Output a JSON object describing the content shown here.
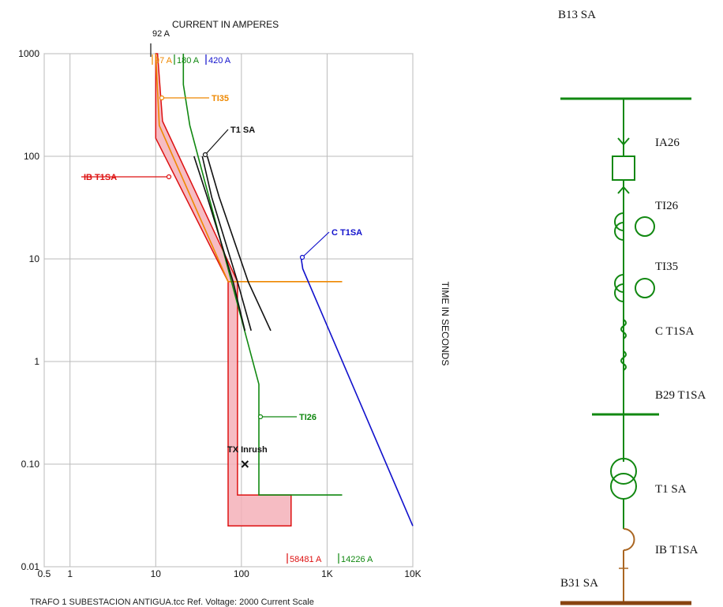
{
  "chart_data": {
    "type": "line",
    "title": "CURRENT IN AMPERES",
    "xlabel": "CURRENT IN AMPERES",
    "ylabel": "TIME IN SECONDS",
    "x_scale": "log",
    "y_scale": "log",
    "xlim": [
      0.5,
      10000
    ],
    "ylim": [
      0.01,
      1000
    ],
    "grid": true,
    "x_ticks": [
      {
        "value": 0.5,
        "label": "0.5"
      },
      {
        "value": 1,
        "label": "1"
      },
      {
        "value": 10,
        "label": "10"
      },
      {
        "value": 100,
        "label": "100"
      },
      {
        "value": 1000,
        "label": "1K"
      },
      {
        "value": 10000,
        "label": "10K"
      }
    ],
    "y_ticks": [
      {
        "value": 1000,
        "label": "1000"
      },
      {
        "value": 100,
        "label": "100"
      },
      {
        "value": 10,
        "label": "10"
      },
      {
        "value": 1,
        "label": "1"
      },
      {
        "value": 0.1,
        "label": "0.10"
      },
      {
        "value": 0.01,
        "label": "0.01"
      }
    ],
    "series": [
      {
        "name": "IB T1SA",
        "color": "#dd1111",
        "band": {
          "left": [
            [
              10,
              1000
            ],
            [
              10,
              150
            ],
            [
              70,
              6
            ],
            [
              70,
              0.025
            ],
            [
              380,
              0.025
            ],
            [
              380,
              0.05
            ]
          ],
          "right": [
            [
              10.5,
              1000
            ],
            [
              12,
              220
            ],
            [
              90,
              6
            ],
            [
              90,
              0.05
            ],
            [
              380,
              0.05
            ]
          ]
        }
      },
      {
        "name": "TI35",
        "color": "#ee8800",
        "points": [
          [
            10,
            1000
          ],
          [
            11,
            200
          ],
          [
            70,
            6
          ],
          [
            1500,
            6
          ]
        ]
      },
      {
        "name": "TI26",
        "color": "#118811",
        "points": [
          [
            21,
            1000
          ],
          [
            21,
            500
          ],
          [
            25,
            200
          ],
          [
            160,
            0.6
          ],
          [
            160,
            0.05
          ],
          [
            1500,
            0.05
          ]
        ]
      },
      {
        "name": "T1 SA",
        "color": "#111111",
        "curves": [
          [
            [
              40,
              100
            ],
            [
              55,
              40
            ],
            [
              120,
              6
            ],
            [
              220,
              2
            ]
          ],
          [
            [
              35,
              100
            ],
            [
              45,
              40
            ],
            [
              90,
              6
            ],
            [
              130,
              2
            ]
          ],
          [
            [
              28,
              100
            ],
            [
              40,
              40
            ],
            [
              80,
              6
            ],
            [
              110,
              2
            ]
          ]
        ]
      },
      {
        "name": "C T1SA",
        "color": "#1111cc",
        "points": [
          [
            500,
            10
          ],
          [
            520,
            8
          ],
          [
            10000,
            0.025
          ]
        ]
      }
    ],
    "points": [
      {
        "name": "TX Inrush",
        "x": 110,
        "y": 0.1,
        "marker": "x",
        "color": "#111111"
      }
    ],
    "annotations": [
      {
        "text": "92 A",
        "x": 9.2,
        "color": "#111111",
        "position": "top"
      },
      {
        "text": "97 A",
        "x": 10,
        "color": "#ee8800",
        "position": "top"
      },
      {
        "text": "180 A",
        "x": 20,
        "color": "#118811",
        "position": "top"
      },
      {
        "text": "420 A",
        "x": 45,
        "color": "#1111cc",
        "position": "top"
      },
      {
        "text": "58481 A",
        "x": 700,
        "color": "#dd1111",
        "position": "bottom"
      },
      {
        "text": "14226 A",
        "x": 1600,
        "color": "#118811",
        "position": "bottom"
      }
    ],
    "series_labels": [
      {
        "text": "TI35",
        "color": "#ee8800"
      },
      {
        "text": "T1 SA",
        "color": "#111111"
      },
      {
        "text": "IB T1SA",
        "color": "#dd1111"
      },
      {
        "text": "C T1SA",
        "color": "#1111cc"
      },
      {
        "text": "TI26",
        "color": "#118811"
      },
      {
        "text": "TX Inrush",
        "color": "#111111"
      }
    ]
  },
  "single_line_diagram": {
    "top_bus": "B13 SA",
    "devices": [
      "IA26",
      "TI26",
      "TI35",
      "C T1SA"
    ],
    "mid_bus": "B29 T1SA",
    "transformer": "T1 SA",
    "fuse": "IB T1SA",
    "bottom_bus": "B31 SA"
  },
  "footer": "TRAFO 1 SUBESTACION ANTIGUA.tcc  Ref. Voltage: 2000   Current Scale"
}
